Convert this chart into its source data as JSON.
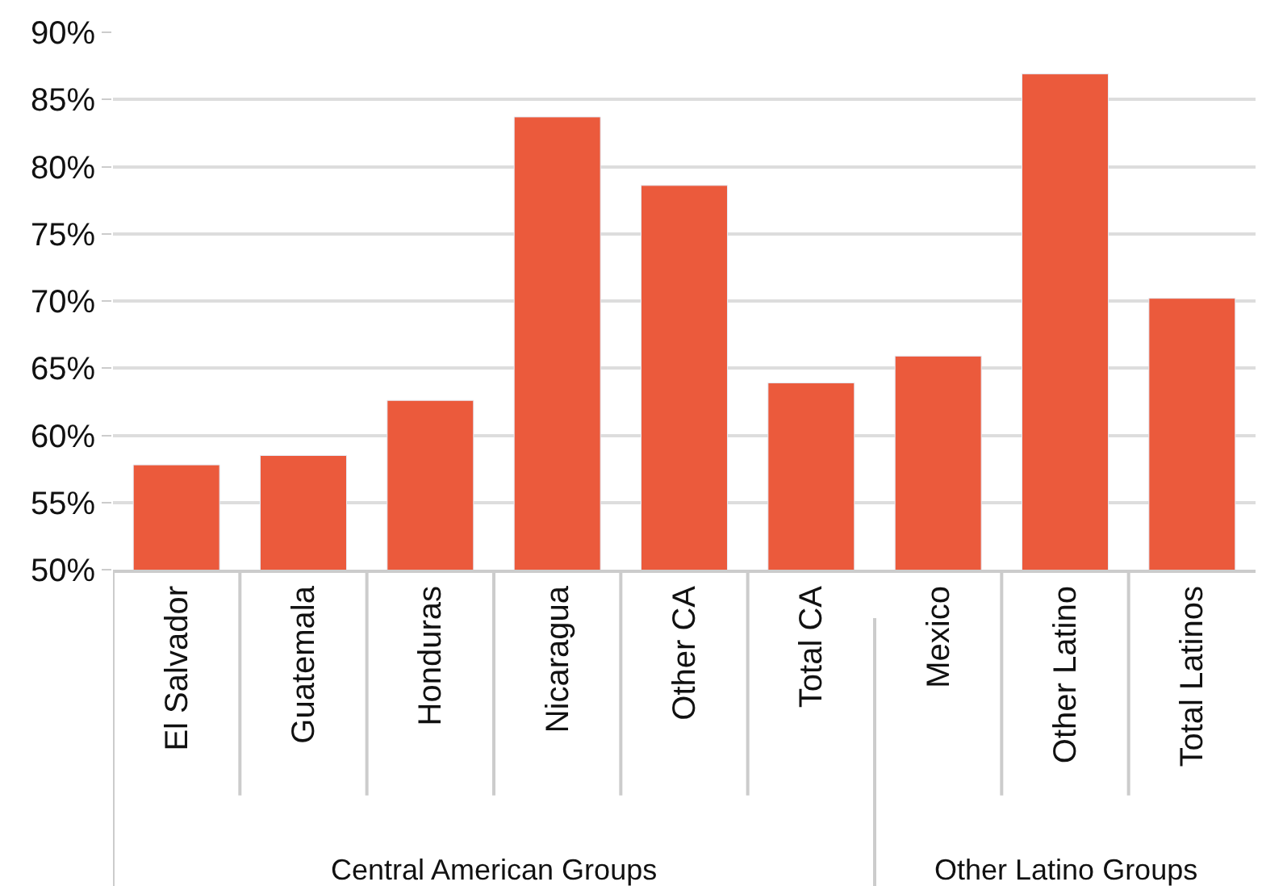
{
  "chart_data": {
    "type": "bar",
    "categories": [
      "El Salvador",
      "Guatemala",
      "Honduras",
      "Nicaragua",
      "Other CA",
      "Total CA",
      "Mexico",
      "Other Latino",
      "Total Latinos"
    ],
    "values": [
      57.8,
      58.5,
      62.6,
      83.7,
      78.6,
      63.9,
      65.9,
      86.9,
      70.2
    ],
    "color": "#eb5a3c",
    "ylim": [
      50,
      90
    ],
    "yticks": [
      {
        "value": 50,
        "label": "50%"
      },
      {
        "value": 55,
        "label": "55%"
      },
      {
        "value": 60,
        "label": "60%"
      },
      {
        "value": 65,
        "label": "65%"
      },
      {
        "value": 70,
        "label": "70%"
      },
      {
        "value": 75,
        "label": "75%"
      },
      {
        "value": 80,
        "label": "80%"
      },
      {
        "value": 85,
        "label": "85%"
      },
      {
        "value": 90,
        "label": "90%"
      }
    ],
    "grid": "y",
    "annotations": [
      "Central American Groups",
      "Other Latino Groups"
    ]
  }
}
